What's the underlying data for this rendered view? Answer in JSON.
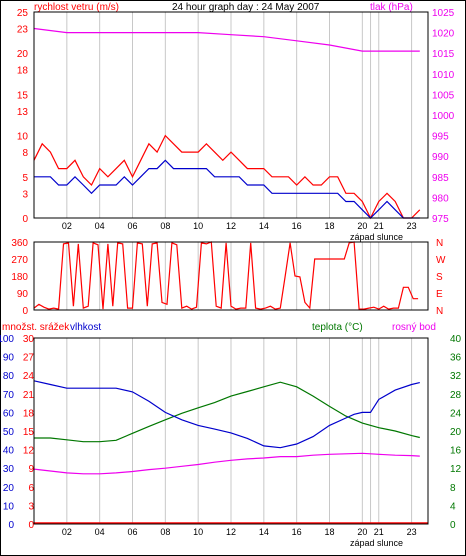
{
  "header": {
    "left_label": "rychlost vetru (m/s)",
    "title": "24 hour graph day : 24 May 2007",
    "right_label": "tlak (hPa)"
  },
  "colors": {
    "wind": "#ff0000",
    "wind_avg": "#0000cc",
    "pressure": "#ee00ee",
    "direction": "#ff0000",
    "humidity": "#0000cc",
    "temperature": "#007700",
    "dew_point": "#ee00ee",
    "rain": "#ff0000",
    "grid_vertical": "#c8c8c8",
    "frame": "#000000"
  },
  "x_axis": {
    "ticks": [
      "02",
      "04",
      "06",
      "08",
      "10",
      "12",
      "14",
      "16",
      "18",
      "20",
      "21",
      "23"
    ],
    "tick_hours": [
      2,
      4,
      6,
      8,
      10,
      12,
      14,
      16,
      18,
      20,
      21,
      23
    ],
    "sunset_label": "západ slunce",
    "sunset_hour": 20.5
  },
  "panel2": {
    "dir_ticks": [
      "360",
      "270",
      "180",
      "90",
      "0"
    ],
    "compass": [
      "N",
      "W",
      "S",
      "E",
      "N"
    ]
  },
  "panel3": {
    "label_rain": "množst. srážek",
    "label_humidity": "vlhkost",
    "label_temp": "teplota (°C)",
    "label_dew": "rosný bod",
    "rain_ticks": [
      "30",
      "27",
      "24",
      "21",
      "18",
      "15",
      "12",
      "9",
      "6",
      "3",
      "0"
    ],
    "humidity_ticks": [
      "100",
      "90",
      "80",
      "70",
      "60",
      "50",
      "40",
      "30",
      "20",
      "10",
      "0"
    ],
    "temp_ticks": [
      "40",
      "36",
      "32",
      "28",
      "24",
      "20",
      "16",
      "12",
      "8",
      "4",
      "0"
    ]
  },
  "chart_data": [
    {
      "type": "line",
      "title": "24 hour graph day : 24 May 2007",
      "x_unit": "hour",
      "xlim": [
        0,
        24
      ],
      "ylabel": "rychlost vetru (m/s)",
      "ylim": [
        0,
        25
      ],
      "y_ticks": [
        0,
        3,
        5,
        8,
        10,
        13,
        15,
        18,
        20,
        23,
        25
      ],
      "y2label": "tlak (hPa)",
      "y2lim": [
        975,
        1025
      ],
      "y2_ticks": [
        975,
        980,
        985,
        990,
        995,
        1000,
        1005,
        1010,
        1015,
        1020,
        1025
      ],
      "series": [
        {
          "axis": "y",
          "role": "gust",
          "x": [
            0,
            0.5,
            1,
            1.5,
            2,
            2.5,
            3,
            3.5,
            4,
            4.5,
            5,
            5.5,
            6,
            6.5,
            7,
            7.5,
            8,
            8.5,
            9,
            9.5,
            10,
            10.5,
            11,
            11.5,
            12,
            12.5,
            13,
            13.5,
            14,
            14.5,
            15,
            15.5,
            16,
            16.5,
            17,
            17.5,
            18,
            18.5,
            19,
            19.5,
            20,
            20.5,
            21,
            21.5,
            22,
            22.5,
            23,
            23.5
          ],
          "values": [
            7,
            9,
            8,
            6,
            6,
            7,
            5,
            4,
            6,
            5,
            6,
            7,
            5,
            7,
            9,
            8,
            10,
            9,
            8,
            8,
            8,
            9,
            8,
            7,
            8,
            7,
            6,
            6,
            6,
            5,
            5,
            5,
            4,
            5,
            4,
            4,
            5,
            5,
            3,
            3,
            2,
            0,
            2,
            3,
            2,
            0,
            0,
            1
          ]
        },
        {
          "axis": "y",
          "role": "average",
          "x": [
            0,
            0.5,
            1,
            1.5,
            2,
            2.5,
            3,
            3.5,
            4,
            4.5,
            5,
            5.5,
            6,
            6.5,
            7,
            7.5,
            8,
            8.5,
            9,
            9.5,
            10,
            10.5,
            11,
            11.5,
            12,
            12.5,
            13,
            13.5,
            14,
            14.5,
            15,
            15.5,
            16,
            16.5,
            17,
            17.5,
            18,
            18.5,
            19,
            19.5,
            20,
            20.5,
            21,
            21.5,
            22,
            22.5,
            23,
            23.5
          ],
          "values": [
            5,
            5,
            5,
            4,
            4,
            5,
            4,
            3,
            4,
            4,
            4,
            5,
            4,
            5,
            6,
            6,
            7,
            6,
            6,
            6,
            6,
            6,
            5,
            5,
            5,
            5,
            4,
            4,
            4,
            3,
            3,
            3,
            3,
            3,
            3,
            3,
            3,
            3,
            2,
            2,
            1,
            0,
            1,
            2,
            1,
            0,
            0,
            0
          ]
        },
        {
          "axis": "y2",
          "role": "pressure",
          "x": [
            0,
            2,
            4,
            6,
            8,
            10,
            12,
            14,
            16,
            18,
            20,
            22,
            23.5
          ],
          "values": [
            1021,
            1020,
            1020,
            1020,
            1020,
            1020,
            1019.5,
            1019,
            1018,
            1017,
            1015.5,
            1015.5,
            1015.5
          ]
        }
      ]
    },
    {
      "type": "line",
      "x_unit": "hour",
      "xlim": [
        0,
        24
      ],
      "ylim": [
        0,
        360
      ],
      "y_ticks": [
        0,
        90,
        180,
        270,
        360
      ],
      "series": [
        {
          "role": "wind direction",
          "x": [
            0,
            0.3,
            0.6,
            0.9,
            1.2,
            1.5,
            1.8,
            2.1,
            2.4,
            2.7,
            3.0,
            3.3,
            3.6,
            3.9,
            4.2,
            4.5,
            4.8,
            5.1,
            5.4,
            5.7,
            6.0,
            6.3,
            6.6,
            6.9,
            7.2,
            7.5,
            7.8,
            8.1,
            8.4,
            8.7,
            9.0,
            9.3,
            9.6,
            9.9,
            10.2,
            10.5,
            10.8,
            11.1,
            11.4,
            11.7,
            12.0,
            12.3,
            12.6,
            12.9,
            13.2,
            13.5,
            13.8,
            14.1,
            14.4,
            14.7,
            15.0,
            15.3,
            15.6,
            15.9,
            16.2,
            16.5,
            16.8,
            17.1,
            17.4,
            17.7,
            18.0,
            18.3,
            18.6,
            18.9,
            19.2,
            19.5,
            19.8,
            20.1,
            20.4,
            20.7,
            21.0,
            21.3,
            21.6,
            21.9,
            22.2,
            22.5,
            22.8,
            23.1,
            23.4
          ],
          "values": [
            10,
            30,
            15,
            5,
            10,
            5,
            350,
            355,
            20,
            350,
            10,
            20,
            355,
            345,
            5,
            350,
            20,
            355,
            350,
            10,
            10,
            355,
            350,
            20,
            350,
            355,
            40,
            30,
            355,
            345,
            10,
            20,
            5,
            15,
            355,
            350,
            360,
            20,
            10,
            355,
            20,
            5,
            10,
            10,
            355,
            10,
            5,
            10,
            20,
            5,
            10,
            180,
            355,
            180,
            175,
            40,
            10,
            270,
            270,
            270,
            270,
            270,
            270,
            270,
            355,
            360,
            5,
            5,
            10,
            15,
            5,
            20,
            5,
            10,
            10,
            120,
            120,
            60,
            60
          ]
        }
      ]
    },
    {
      "type": "line",
      "x_unit": "hour",
      "xlim": [
        0,
        24
      ],
      "ylabel": "množst. srážek",
      "ylim": [
        0,
        30
      ],
      "y_ticks": [
        0,
        3,
        6,
        9,
        12,
        15,
        18,
        21,
        24,
        27,
        30
      ],
      "y1blabel": "vlhkost",
      "y1blim": [
        0,
        100
      ],
      "y1b_ticks": [
        0,
        10,
        20,
        30,
        40,
        50,
        60,
        70,
        80,
        90,
        100
      ],
      "y2label": "teplota (°C)",
      "y2lim": [
        0,
        40
      ],
      "y2_ticks": [
        0,
        4,
        8,
        12,
        16,
        20,
        24,
        28,
        32,
        36,
        40
      ],
      "series": [
        {
          "axis": "y",
          "role": "rain",
          "x": [
            0,
            24
          ],
          "values": [
            0,
            0
          ]
        },
        {
          "axis": "y1b",
          "role": "humidity",
          "x": [
            0,
            1,
            2,
            3,
            4,
            5,
            6,
            7,
            8,
            9,
            10,
            11,
            12,
            13,
            14,
            15,
            16,
            17,
            18,
            19,
            19.5,
            20,
            20.5,
            21,
            22,
            23,
            23.5
          ],
          "values": [
            77,
            75,
            73,
            73,
            73,
            73,
            71,
            66,
            60,
            56,
            53,
            51,
            49,
            46,
            42,
            41,
            43,
            47,
            53,
            57,
            59,
            60,
            60,
            67,
            72,
            75,
            76
          ]
        },
        {
          "axis": "y2",
          "role": "temperature",
          "x": [
            0,
            1,
            2,
            3,
            4,
            5,
            6,
            7,
            8,
            9,
            10,
            11,
            12,
            13,
            14,
            15,
            16,
            17,
            18,
            19,
            20,
            21,
            22,
            23,
            23.5
          ],
          "values": [
            18.5,
            18.5,
            18.1,
            17.7,
            17.7,
            18.0,
            19.5,
            21.0,
            22.4,
            23.8,
            25.0,
            26.1,
            27.5,
            28.5,
            29.5,
            30.5,
            29.5,
            27.5,
            25.3,
            23.2,
            21.7,
            20.7,
            20.0,
            19.0,
            18.6
          ]
        },
        {
          "axis": "y2",
          "role": "dew point",
          "x": [
            0,
            1,
            2,
            3,
            4,
            5,
            6,
            7,
            8,
            9,
            10,
            11,
            12,
            13,
            14,
            15,
            16,
            17,
            18,
            19,
            20,
            21,
            22,
            23,
            23.5
          ],
          "values": [
            11.8,
            11.4,
            11.0,
            10.8,
            10.8,
            11.0,
            11.3,
            11.7,
            12.0,
            12.4,
            12.8,
            13.3,
            13.7,
            14.0,
            14.2,
            14.5,
            14.5,
            14.8,
            15.0,
            15.1,
            15.2,
            15.0,
            14.8,
            14.7,
            14.6
          ]
        }
      ]
    }
  ]
}
